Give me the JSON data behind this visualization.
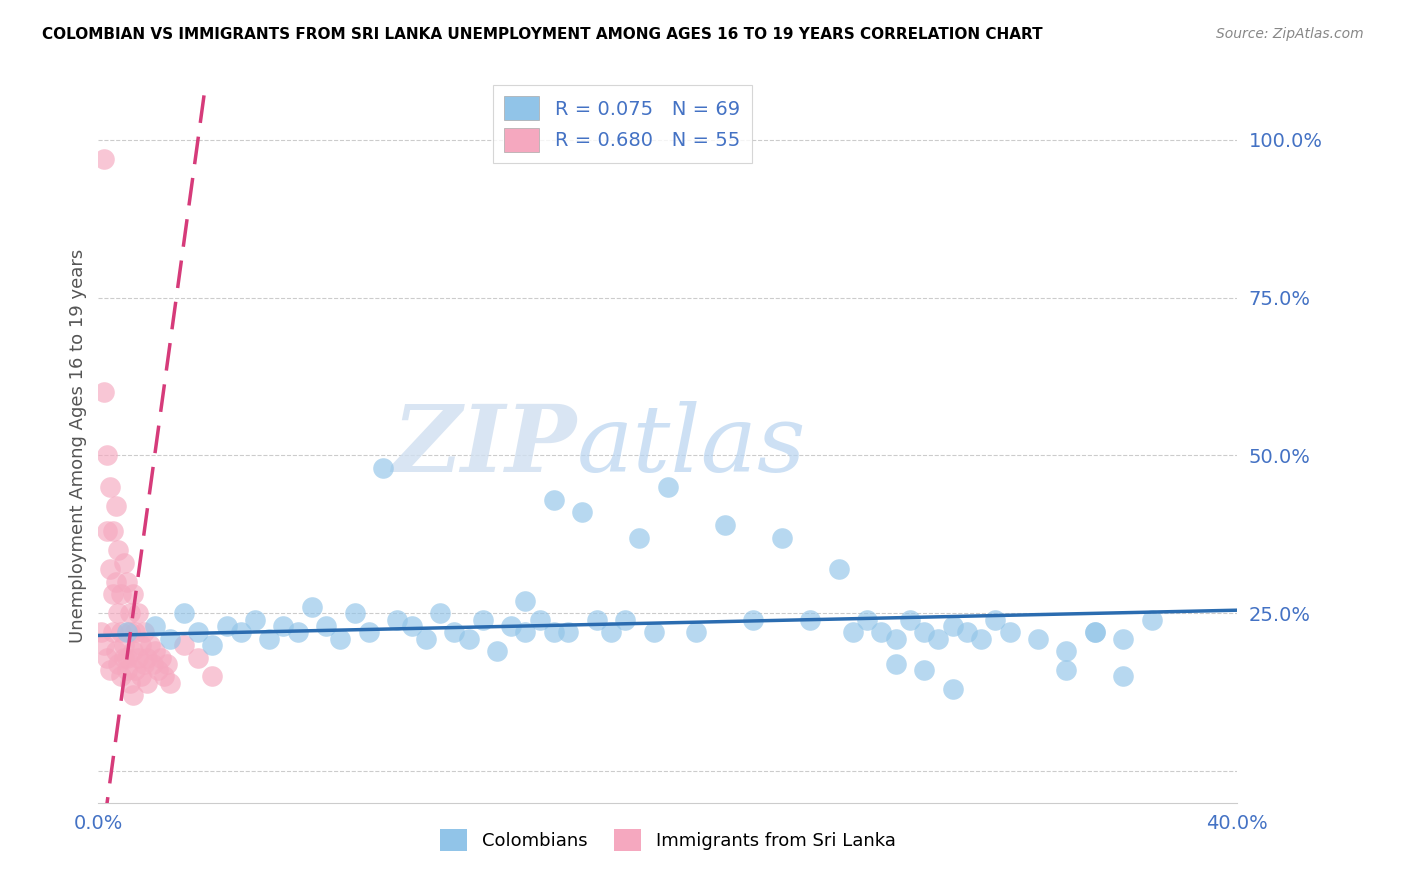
{
  "title": "COLOMBIAN VS IMMIGRANTS FROM SRI LANKA UNEMPLOYMENT AMONG AGES 16 TO 19 YEARS CORRELATION CHART",
  "source": "Source: ZipAtlas.com",
  "ylabel": "Unemployment Among Ages 16 to 19 years",
  "xlim": [
    0.0,
    0.4
  ],
  "ylim": [
    -0.05,
    1.08
  ],
  "yticks": [
    0.0,
    0.25,
    0.5,
    0.75,
    1.0
  ],
  "ytick_labels": [
    "",
    "25.0%",
    "50.0%",
    "75.0%",
    "100.0%"
  ],
  "xticks": [
    0.0,
    0.4
  ],
  "xtick_labels": [
    "0.0%",
    "40.0%"
  ],
  "blue_R": 0.075,
  "blue_N": 69,
  "pink_R": 0.68,
  "pink_N": 55,
  "blue_color": "#91c4e8",
  "pink_color": "#f5a8bf",
  "blue_line_color": "#2b6cb0",
  "pink_line_color": "#d63b7a",
  "watermark_zip": "ZIP",
  "watermark_atlas": "atlas",
  "legend_label_blue": "Colombians",
  "legend_label_pink": "Immigrants from Sri Lanka",
  "blue_scatter_x": [
    0.01,
    0.02,
    0.025,
    0.03,
    0.035,
    0.04,
    0.045,
    0.05,
    0.055,
    0.06,
    0.065,
    0.07,
    0.075,
    0.08,
    0.085,
    0.09,
    0.095,
    0.1,
    0.105,
    0.11,
    0.115,
    0.12,
    0.125,
    0.13,
    0.135,
    0.14,
    0.145,
    0.15,
    0.155,
    0.16,
    0.165,
    0.17,
    0.175,
    0.18,
    0.185,
    0.19,
    0.195,
    0.2,
    0.21,
    0.22,
    0.23,
    0.24,
    0.25,
    0.26,
    0.265,
    0.27,
    0.275,
    0.28,
    0.285,
    0.29,
    0.295,
    0.3,
    0.305,
    0.31,
    0.315,
    0.32,
    0.33,
    0.34,
    0.35,
    0.36,
    0.15,
    0.16,
    0.28,
    0.29,
    0.3,
    0.34,
    0.35,
    0.36,
    0.37
  ],
  "blue_scatter_y": [
    0.22,
    0.23,
    0.21,
    0.25,
    0.22,
    0.2,
    0.23,
    0.22,
    0.24,
    0.21,
    0.23,
    0.22,
    0.26,
    0.23,
    0.21,
    0.25,
    0.22,
    0.48,
    0.24,
    0.23,
    0.21,
    0.25,
    0.22,
    0.21,
    0.24,
    0.19,
    0.23,
    0.22,
    0.24,
    0.43,
    0.22,
    0.41,
    0.24,
    0.22,
    0.24,
    0.37,
    0.22,
    0.45,
    0.22,
    0.39,
    0.24,
    0.37,
    0.24,
    0.32,
    0.22,
    0.24,
    0.22,
    0.21,
    0.24,
    0.22,
    0.21,
    0.23,
    0.22,
    0.21,
    0.24,
    0.22,
    0.21,
    0.19,
    0.22,
    0.21,
    0.27,
    0.22,
    0.17,
    0.16,
    0.13,
    0.16,
    0.22,
    0.15,
    0.24
  ],
  "pink_scatter_x": [
    0.002,
    0.003,
    0.004,
    0.005,
    0.006,
    0.007,
    0.008,
    0.009,
    0.01,
    0.011,
    0.012,
    0.013,
    0.014,
    0.015,
    0.016,
    0.017,
    0.018,
    0.019,
    0.02,
    0.021,
    0.022,
    0.023,
    0.024,
    0.025,
    0.002,
    0.003,
    0.004,
    0.005,
    0.006,
    0.007,
    0.008,
    0.009,
    0.01,
    0.011,
    0.012,
    0.013,
    0.014,
    0.015,
    0.016,
    0.017,
    0.001,
    0.002,
    0.003,
    0.004,
    0.005,
    0.006,
    0.007,
    0.008,
    0.009,
    0.01,
    0.011,
    0.012,
    0.03,
    0.035,
    0.04
  ],
  "pink_scatter_y": [
    0.97,
    0.5,
    0.45,
    0.38,
    0.42,
    0.35,
    0.28,
    0.33,
    0.3,
    0.25,
    0.28,
    0.22,
    0.25,
    0.2,
    0.22,
    0.18,
    0.2,
    0.17,
    0.19,
    0.16,
    0.18,
    0.15,
    0.17,
    0.14,
    0.6,
    0.38,
    0.32,
    0.28,
    0.3,
    0.25,
    0.22,
    0.2,
    0.18,
    0.22,
    0.19,
    0.16,
    0.18,
    0.15,
    0.17,
    0.14,
    0.22,
    0.2,
    0.18,
    0.16,
    0.22,
    0.19,
    0.17,
    0.15,
    0.18,
    0.16,
    0.14,
    0.12,
    0.2,
    0.18,
    0.15
  ]
}
